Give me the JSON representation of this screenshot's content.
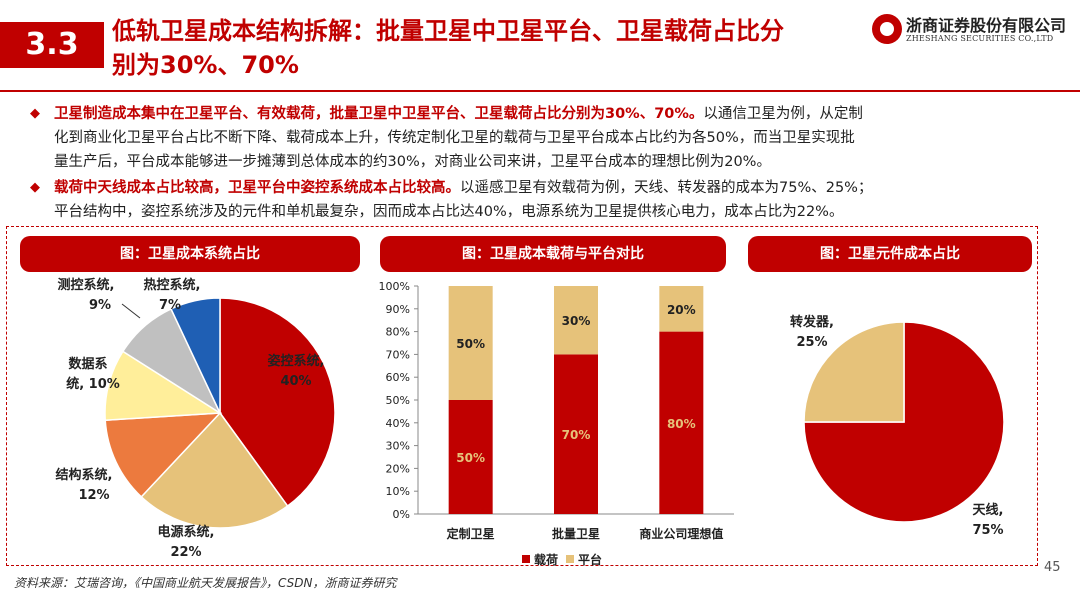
{
  "header": {
    "section_number": "3.3",
    "title_line1": "低轨卫星成本结构拆解：批量卫星中卫星平台、卫星载荷占比分",
    "title_line2": "别为30%、70%",
    "logo_cn": "浙商证券股份有限公司",
    "logo_en": "ZHESHANG SECURITIES CO.,LTD"
  },
  "bullets": [
    {
      "mark": "◆",
      "bold": "卫星制造成本集中在卫星平台、有效载荷，批量卫星中卫星平台、卫星载荷占比分别为30%、70%。",
      "rest_line1": "以通信卫星为例，从定制",
      "line2": "化到商业化卫星平台占比不断下降、载荷成本上升，传统定制化卫星的载荷与卫星平台成本占比约为各50%，而当卫星实现批",
      "line3": "量生产后，平台成本能够进一步摊薄到总体成本的约30%，对商业公司来讲，卫星平台成本的理想比例为20%。"
    },
    {
      "mark": "◆",
      "bold": "载荷中天线成本占比较高，卫星平台中姿控系统成本占比较高。",
      "rest_line1": "以遥感卫星有效载荷为例，天线、转发器的成本为75%、25%；",
      "line2": "平台结构中，姿控系统涉及的元件和单机最复杂，因而成本占比达40%，电源系统为卫星提供核心电力，成本占比为22%。"
    }
  ],
  "panels": {
    "left_title": "图：卫星成本系统占比",
    "mid_title": "图：卫星成本载荷与平台对比",
    "right_title": "图：卫星元件成本占比"
  },
  "colors": {
    "accent": "#C00000",
    "red": "#C00000",
    "tan": "#E6C27A",
    "orange": "#EC7A3E",
    "yellow": "#FFEE9A",
    "gray": "#C0C0C0",
    "blue": "#1F5FB4"
  },
  "chart_data": [
    {
      "type": "pie",
      "title": "图：卫星成本系统占比",
      "slices": [
        {
          "name": "姿控系统",
          "value": 40,
          "label_line1": "姿控系统,",
          "label_line2": "40%",
          "color": "#C00000"
        },
        {
          "name": "电源系统",
          "value": 22,
          "label_line1": "电源系统,",
          "label_line2": "22%",
          "color": "#E6C27A"
        },
        {
          "name": "结构系统",
          "value": 12,
          "label_line1": "结构系统,",
          "label_line2": "12%",
          "color": "#EC7A3E"
        },
        {
          "name": "数据系统",
          "value": 10,
          "label_line1": "数据系",
          "label_line2": "统, 10%",
          "color": "#FFEE9A"
        },
        {
          "name": "测控系统",
          "value": 9,
          "label_line1": "测控系统,",
          "label_line2": "9%",
          "color": "#C0C0C0"
        },
        {
          "name": "热控系统",
          "value": 7,
          "label_line1": "热控系统,",
          "label_line2": "7%",
          "color": "#1F5FB4"
        }
      ]
    },
    {
      "type": "bar",
      "stacked": true,
      "title": "图：卫星成本载荷与平台对比",
      "categories": [
        "定制卫星",
        "批量卫星",
        "商业公司理想值"
      ],
      "series": [
        {
          "name": "载荷",
          "values": [
            50,
            70,
            80
          ],
          "labels": [
            "50%",
            "70%",
            "80%"
          ],
          "color": "#C00000"
        },
        {
          "name": "平台",
          "values": [
            50,
            30,
            20
          ],
          "labels": [
            "50%",
            "30%",
            "20%"
          ],
          "color": "#E6C27A"
        }
      ],
      "yticks": [
        "0%",
        "10%",
        "20%",
        "30%",
        "40%",
        "50%",
        "60%",
        "70%",
        "80%",
        "90%",
        "100%"
      ],
      "ylim": [
        0,
        100
      ]
    },
    {
      "type": "pie",
      "title": "图：卫星元件成本占比",
      "slices": [
        {
          "name": "天线",
          "value": 75,
          "label_line1": "天线,",
          "label_line2": "75%",
          "color": "#C00000"
        },
        {
          "name": "转发器",
          "value": 25,
          "label_line1": "转发器,",
          "label_line2": "25%",
          "color": "#E6C27A"
        }
      ]
    }
  ],
  "footer": {
    "source": "资料来源：艾瑞咨询，《中国商业航天发展报告》，CSDN，浙商证券研究",
    "page": "45"
  }
}
